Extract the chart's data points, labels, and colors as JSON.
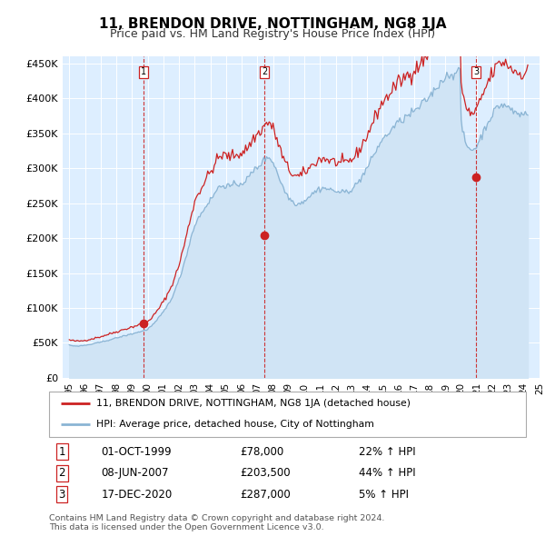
{
  "title": "11, BRENDON DRIVE, NOTTINGHAM, NG8 1JA",
  "subtitle": "Price paid vs. HM Land Registry's House Price Index (HPI)",
  "hpi_label": "HPI: Average price, detached house, City of Nottingham",
  "property_label": "11, BRENDON DRIVE, NOTTINGHAM, NG8 1JA (detached house)",
  "hpi_color": "#8ab4d4",
  "hpi_fill_color": "#d0e4f5",
  "property_color": "#cc2222",
  "vline_color": "#cc2222",
  "bg_color": "#ddeeff",
  "sale_dates": [
    1999.75,
    2007.44,
    2020.96
  ],
  "sale_prices": [
    78000,
    203500,
    287000
  ],
  "table_rows": [
    [
      "1",
      "01-OCT-1999",
      "£78,000",
      "22% ↑ HPI"
    ],
    [
      "2",
      "08-JUN-2007",
      "£203,500",
      "44% ↑ HPI"
    ],
    [
      "3",
      "17-DEC-2020",
      "£287,000",
      "5% ↑ HPI"
    ]
  ],
  "footer": "Contains HM Land Registry data © Crown copyright and database right 2024.\nThis data is licensed under the Open Government Licence v3.0.",
  "ylim": [
    0,
    460000
  ],
  "yticks": [
    0,
    50000,
    100000,
    150000,
    200000,
    250000,
    300000,
    350000,
    400000,
    450000
  ],
  "ytick_labels": [
    "£0",
    "£50K",
    "£100K",
    "£150K",
    "£200K",
    "£250K",
    "£300K",
    "£350K",
    "£400K",
    "£450K"
  ],
  "hpi_values": [
    47000,
    46500,
    46200,
    46000,
    45800,
    45600,
    45500,
    45400,
    45600,
    45800,
    46000,
    46200,
    46500,
    46800,
    47200,
    47500,
    47800,
    48200,
    48600,
    49000,
    49400,
    49800,
    50200,
    50600,
    51000,
    51500,
    52000,
    52500,
    53000,
    53500,
    54000,
    54500,
    55000,
    55500,
    56000,
    56500,
    57000,
    57500,
    58000,
    58500,
    59000,
    59500,
    60000,
    60500,
    61000,
    61500,
    62000,
    62500,
    63000,
    63500,
    64000,
    64500,
    65000,
    65500,
    66000,
    66500,
    67000,
    67500,
    68000,
    68500,
    70000,
    71500,
    73000,
    74500,
    76000,
    78000,
    80000,
    82000,
    84500,
    87000,
    89500,
    92000,
    94000,
    97000,
    100000,
    103000,
    106000,
    109500,
    113000,
    117000,
    121000,
    125000,
    130000,
    135000,
    140000,
    146000,
    152000,
    158000,
    164500,
    171000,
    178000,
    185000,
    192000,
    199000,
    206000,
    212000,
    218000,
    222000,
    226000,
    229000,
    232000,
    235000,
    238000,
    241000,
    244000,
    247000,
    250000,
    252000,
    254000,
    257000,
    260000,
    263000,
    266000,
    269000,
    272000,
    273000,
    274000,
    275000,
    275500,
    276000,
    275000,
    274500,
    274000,
    274000,
    274500,
    275000,
    275500,
    276000,
    276500,
    277000,
    277500,
    278000,
    278500,
    279500,
    281000,
    282500,
    284000,
    286000,
    288500,
    291000,
    293500,
    296000,
    298000,
    300000,
    301000,
    303000,
    305000,
    307000,
    309000,
    311000,
    313000,
    315000,
    315500,
    316000,
    314000,
    311000,
    308000,
    304000,
    300000,
    295000,
    290000,
    285000,
    280000,
    275000,
    271000,
    267000,
    264000,
    261000,
    258000,
    256000,
    254000,
    252500,
    251000,
    250000,
    249500,
    249000,
    249500,
    250000,
    251000,
    252500,
    254000,
    255500,
    257000,
    258500,
    260000,
    261500,
    263000,
    264500,
    266000,
    267500,
    269000,
    270000,
    270500,
    271000,
    271500,
    271500,
    271000,
    270500,
    270000,
    269500,
    269000,
    268500,
    268000,
    267500,
    267000,
    266500,
    266000,
    265500,
    265000,
    265000,
    265500,
    266000,
    266500,
    267000,
    268000,
    269000,
    270000,
    271500,
    273000,
    275000,
    277000,
    279500,
    282000,
    285000,
    288000,
    291000,
    294000,
    297000,
    300000,
    303500,
    307000,
    311000,
    315000,
    318500,
    322000,
    325500,
    329000,
    332500,
    336000,
    339000,
    341000,
    343000,
    345000,
    347000,
    349000,
    351500,
    354000,
    356000,
    358000,
    360000,
    362000,
    364000,
    365000,
    366500,
    368000,
    369000,
    370500,
    372000,
    373500,
    375000,
    376000,
    377000,
    378500,
    380000,
    381000,
    382500,
    384000,
    385500,
    387000,
    389000,
    391000,
    393000,
    395000,
    397000,
    399000,
    401000,
    403000,
    405500,
    408000,
    410000,
    412500,
    415000,
    417500,
    420000,
    422500,
    425000,
    427000,
    429000,
    430000,
    431500,
    432500,
    433500,
    434500,
    435000,
    435500,
    436000,
    436500,
    437000,
    437500,
    438000,
    370000,
    355000,
    345000,
    338000,
    333000,
    330000,
    328500,
    327000,
    327000,
    327000,
    328000,
    329000,
    332000,
    336000,
    340000,
    344000,
    348000,
    352000,
    356000,
    360000,
    364000,
    368000,
    371000,
    374000,
    377000,
    380000,
    383000,
    385000,
    387000,
    389000,
    390000,
    390500,
    390500,
    390000,
    389500,
    388500,
    387000,
    385500,
    384000,
    382500,
    381000,
    380000,
    379000,
    378000,
    377500,
    377000,
    377000,
    377000,
    377500,
    378000,
    379000,
    380000
  ]
}
